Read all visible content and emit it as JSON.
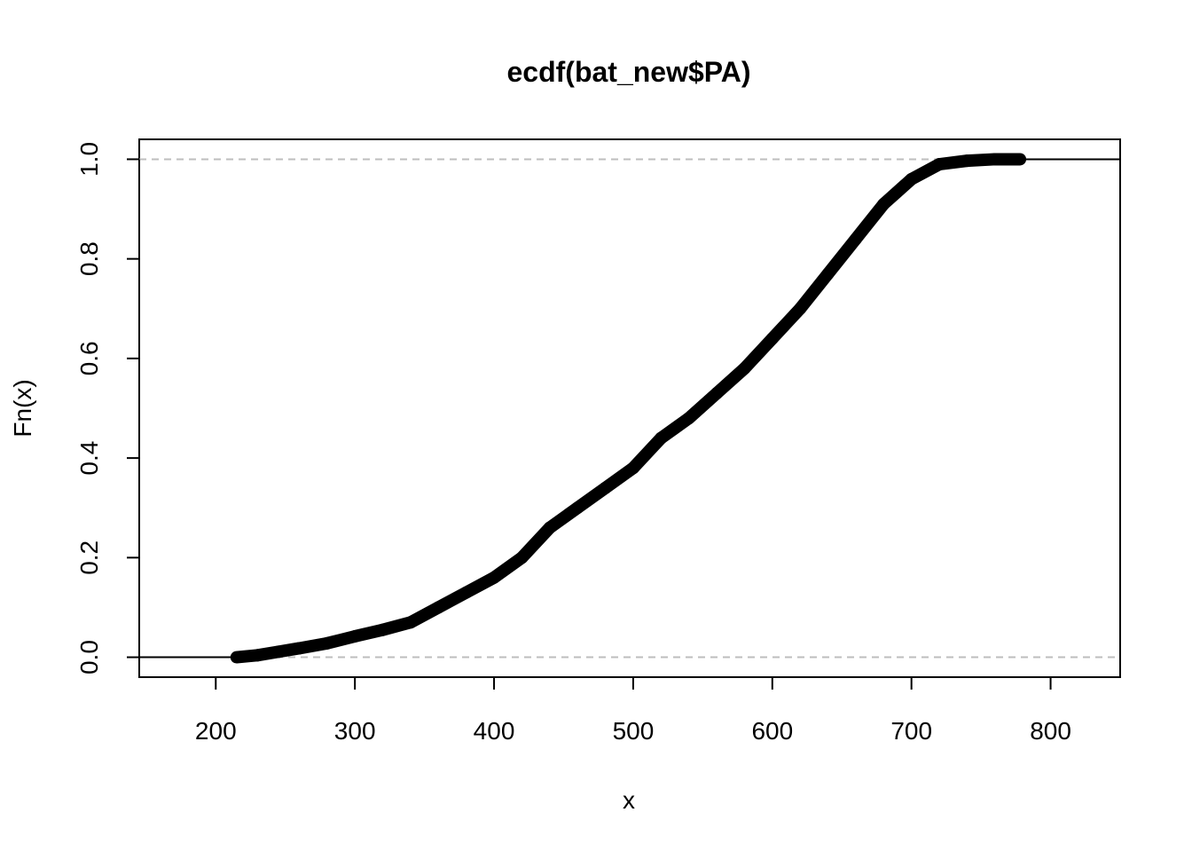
{
  "chart_data": {
    "type": "scatter",
    "title": "ecdf(bat_new$PA)",
    "xlabel": "x",
    "ylabel": "Fn(x)",
    "xlim": [
      145,
      850
    ],
    "ylim": [
      -0.04,
      1.04
    ],
    "x_ticks": [
      "200",
      "300",
      "400",
      "500",
      "600",
      "700",
      "800"
    ],
    "y_ticks": [
      "0.0",
      "0.2",
      "0.4",
      "0.6",
      "0.8",
      "1.0"
    ],
    "reference_lines": [
      0,
      1
    ],
    "series": [
      {
        "x": [
          215,
          230,
          245,
          260,
          280,
          300,
          320,
          340,
          360,
          380,
          400,
          420,
          440,
          460,
          480,
          500,
          520,
          540,
          560,
          580,
          600,
          620,
          640,
          660,
          680,
          700,
          720,
          740,
          760,
          765,
          778
        ],
        "values": [
          0.0,
          0.004,
          0.011,
          0.018,
          0.028,
          0.042,
          0.055,
          0.07,
          0.1,
          0.13,
          0.16,
          0.2,
          0.26,
          0.3,
          0.34,
          0.38,
          0.44,
          0.48,
          0.53,
          0.58,
          0.64,
          0.7,
          0.77,
          0.84,
          0.91,
          0.96,
          0.99,
          0.997,
          1.0,
          1.0,
          1.0
        ]
      }
    ],
    "grid": false,
    "legend": "none",
    "colors": {
      "points": "#000000",
      "reference_line": "#bebebe",
      "frame": "#000000"
    }
  }
}
